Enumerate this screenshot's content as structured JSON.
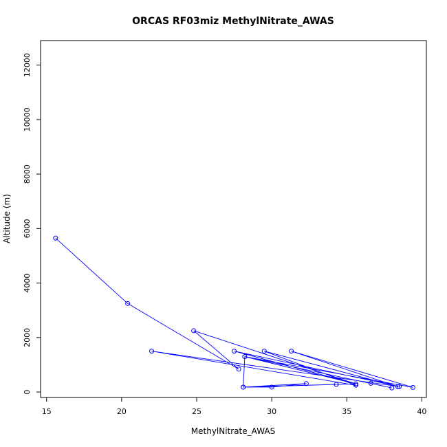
{
  "chart_data": {
    "type": "line",
    "title": "ORCAS RF03miz MethylNitrate_AWAS",
    "xlabel": "MethylNitrate_AWAS",
    "ylabel": "Altitude (m)",
    "xlim": [
      14.6,
      40.3
    ],
    "ylim": [
      -200,
      12900
    ],
    "xticks": [
      15,
      20,
      25,
      30,
      35,
      40
    ],
    "yticks": [
      0,
      2000,
      4000,
      6000,
      8000,
      10000,
      12000
    ],
    "grid": false,
    "series": [
      {
        "color": "#0000ff",
        "x": [
          15.6,
          20.4,
          27.8,
          24.8,
          35.6,
          27.5,
          38.5,
          22.0,
          35.6,
          29.5,
          38.4,
          31.3,
          39.4,
          28.2,
          35.6,
          34.3,
          28.1,
          30.0,
          32.3,
          28.1,
          28.2,
          38.0,
          36.6
        ],
        "y": [
          5650,
          3250,
          840,
          2250,
          300,
          1500,
          200,
          1500,
          250,
          1500,
          200,
          1500,
          170,
          1300,
          300,
          280,
          180,
          180,
          310,
          180,
          1300,
          150,
          320
        ]
      }
    ]
  }
}
